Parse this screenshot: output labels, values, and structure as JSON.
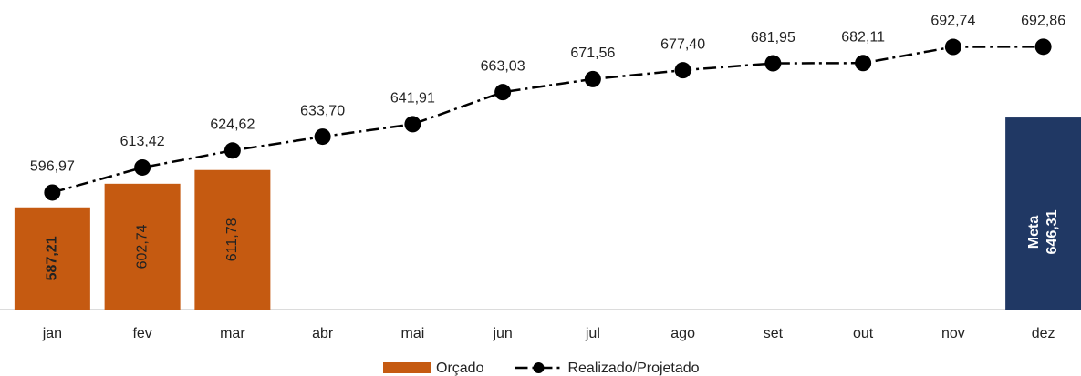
{
  "chart_data": {
    "type": "combo",
    "categories": [
      "jan",
      "fev",
      "mar",
      "abr",
      "mai",
      "jun",
      "jul",
      "ago",
      "set",
      "out",
      "nov",
      "dez"
    ],
    "ylim": [
      520,
      720
    ],
    "series": [
      {
        "name": "Orçado",
        "type": "bar",
        "color": "#c55a11",
        "legend": true,
        "values": [
          587.21,
          602.74,
          611.78,
          null,
          null,
          null,
          null,
          null,
          null,
          null,
          null,
          null
        ],
        "value_labels": [
          "587,21",
          "602,74",
          "611,78",
          null,
          null,
          null,
          null,
          null,
          null,
          null,
          null,
          null
        ],
        "bold_labels": [
          0
        ]
      },
      {
        "name": "Realizado/Projetado",
        "type": "line",
        "color": "#000000",
        "legend": true,
        "values": [
          596.97,
          613.42,
          624.62,
          633.7,
          641.91,
          663.03,
          671.56,
          677.4,
          681.95,
          682.11,
          692.74,
          692.86
        ],
        "value_labels": [
          "596,97",
          "613,42",
          "624,62",
          "633,70",
          "641,91",
          "663,03",
          "671,56",
          "677,40",
          "681,95",
          "682,11",
          "692,74",
          "692,86"
        ]
      },
      {
        "name": "Meta",
        "type": "bar",
        "color": "#203864",
        "legend": false,
        "values": [
          null,
          null,
          null,
          null,
          null,
          null,
          null,
          null,
          null,
          null,
          null,
          646.31
        ],
        "value_labels": [
          null,
          null,
          null,
          null,
          null,
          null,
          null,
          null,
          null,
          null,
          null,
          "646,31"
        ]
      }
    ]
  }
}
